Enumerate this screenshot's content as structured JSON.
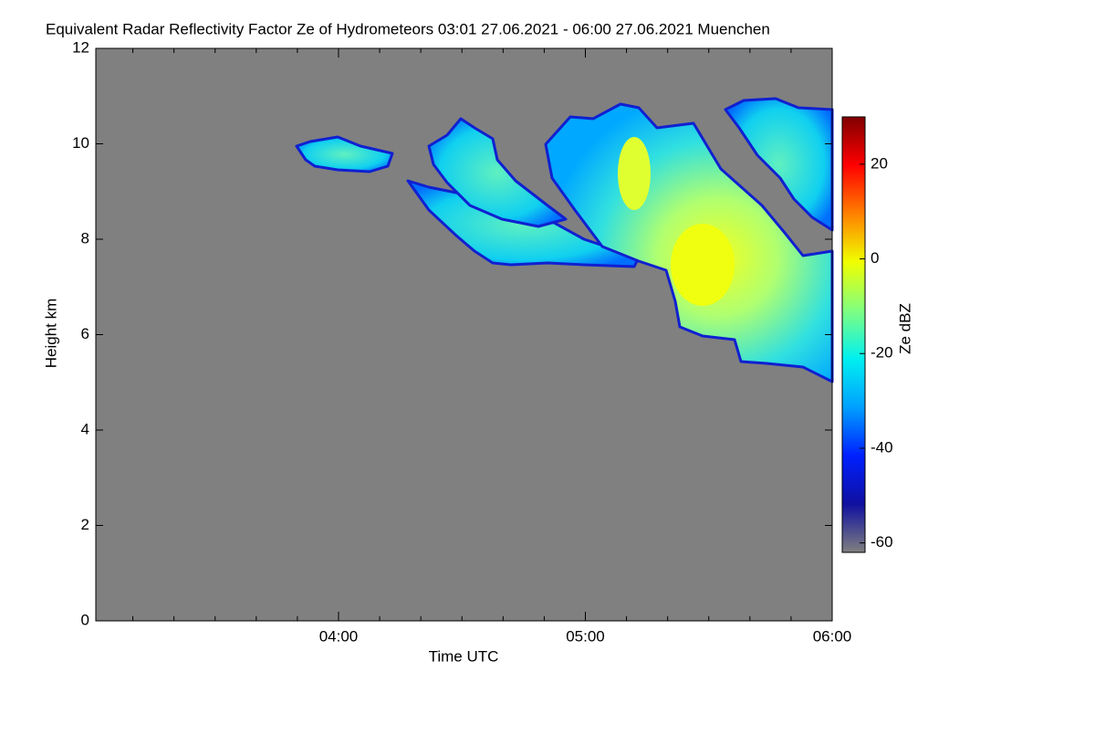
{
  "chart_data": {
    "type": "heatmap",
    "title": "Equivalent Radar Reflectivity Factor Ze of Hydrometeors   03:01 27.06.2021 - 06:00 27.06.2021 Muenchen",
    "xlabel": "Time UTC",
    "ylabel": "Height km",
    "xlim": [
      181,
      360
    ],
    "xticks": [
      {
        "value": 240,
        "label": "04:00"
      },
      {
        "value": 300,
        "label": "05:00"
      },
      {
        "value": 360,
        "label": "06:00"
      }
    ],
    "xminorticks": [
      190,
      200,
      210,
      220,
      230,
      250,
      260,
      270,
      280,
      290,
      310,
      320,
      330,
      340,
      350
    ],
    "ylim": [
      0,
      12
    ],
    "yticks": [
      0,
      2,
      4,
      6,
      8,
      10,
      12
    ],
    "background": "#808080",
    "colorbar": {
      "label": "Ze dBZ",
      "zlim": [
        -62,
        30
      ],
      "ticks": [
        -60,
        -40,
        -20,
        0,
        20
      ],
      "colormap": [
        "#808080",
        "#1010a0",
        "#0020ff",
        "#00a0ff",
        "#00f0f0",
        "#80ff80",
        "#f0ff00",
        "#ff8000",
        "#ff0000",
        "#800000"
      ]
    }
  }
}
